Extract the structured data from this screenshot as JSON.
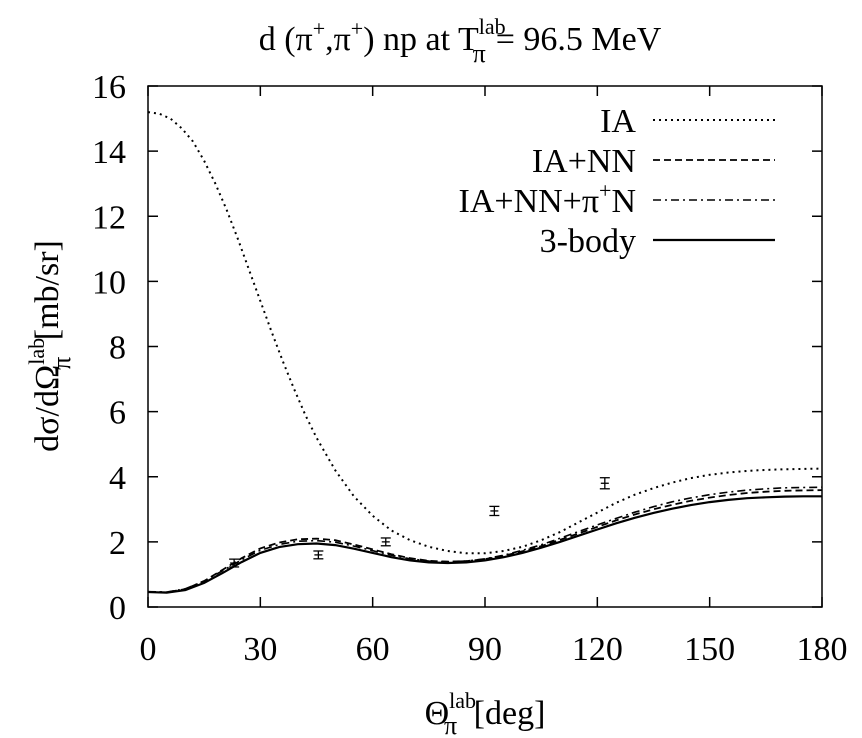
{
  "chart_data": {
    "type": "line",
    "title": {
      "prefix": "d (π",
      "sup1": "+",
      "mid": ",π",
      "sup2": "+",
      "suffix1": ") np at T",
      "sub": "π",
      "sup3": "lab",
      "suffix2": "= 96.5 MeV"
    },
    "xlabel": {
      "main": "Θ",
      "sub": "π",
      "sup": "lab",
      "unit": " [deg]"
    },
    "ylabel": {
      "main": "dσ/dΩ",
      "sub": "π",
      "sup": "lab",
      "unit": " [mb/sr]"
    },
    "xlim": [
      0,
      180
    ],
    "ylim": [
      0,
      16
    ],
    "xticks": [
      0,
      30,
      60,
      90,
      120,
      150,
      180
    ],
    "yticks": [
      0,
      2,
      4,
      6,
      8,
      10,
      12,
      14,
      16
    ],
    "grid": false,
    "legend_position": "top-right",
    "series": [
      {
        "name": "IA",
        "style": "dotted",
        "points": [
          [
            0,
            15.2
          ],
          [
            3,
            15.15
          ],
          [
            6,
            15.0
          ],
          [
            9,
            14.7
          ],
          [
            12,
            14.3
          ],
          [
            15,
            13.7
          ],
          [
            18,
            13.0
          ],
          [
            21,
            12.2
          ],
          [
            24,
            11.3
          ],
          [
            27,
            10.35
          ],
          [
            30,
            9.4
          ],
          [
            33,
            8.45
          ],
          [
            36,
            7.55
          ],
          [
            39,
            6.7
          ],
          [
            42,
            5.9
          ],
          [
            45,
            5.2
          ],
          [
            50,
            4.2
          ],
          [
            55,
            3.4
          ],
          [
            60,
            2.8
          ],
          [
            65,
            2.35
          ],
          [
            70,
            2.05
          ],
          [
            75,
            1.85
          ],
          [
            80,
            1.72
          ],
          [
            85,
            1.65
          ],
          [
            90,
            1.65
          ],
          [
            95,
            1.72
          ],
          [
            100,
            1.85
          ],
          [
            105,
            2.05
          ],
          [
            110,
            2.3
          ],
          [
            115,
            2.6
          ],
          [
            120,
            2.9
          ],
          [
            125,
            3.2
          ],
          [
            130,
            3.45
          ],
          [
            135,
            3.65
          ],
          [
            140,
            3.82
          ],
          [
            145,
            3.96
          ],
          [
            150,
            4.06
          ],
          [
            155,
            4.13
          ],
          [
            160,
            4.18
          ],
          [
            165,
            4.21
          ],
          [
            170,
            4.23
          ],
          [
            175,
            4.24
          ],
          [
            180,
            4.25
          ]
        ]
      },
      {
        "name": "IA+NN",
        "style": "dashed",
        "points": [
          [
            0,
            0.46
          ],
          [
            5,
            0.45
          ],
          [
            10,
            0.55
          ],
          [
            15,
            0.8
          ],
          [
            20,
            1.15
          ],
          [
            25,
            1.5
          ],
          [
            30,
            1.8
          ],
          [
            35,
            1.98
          ],
          [
            40,
            2.08
          ],
          [
            45,
            2.1
          ],
          [
            50,
            2.05
          ],
          [
            55,
            1.92
          ],
          [
            60,
            1.77
          ],
          [
            65,
            1.62
          ],
          [
            70,
            1.5
          ],
          [
            75,
            1.42
          ],
          [
            80,
            1.39
          ],
          [
            85,
            1.41
          ],
          [
            90,
            1.47
          ],
          [
            95,
            1.57
          ],
          [
            100,
            1.71
          ],
          [
            105,
            1.87
          ],
          [
            110,
            2.06
          ],
          [
            115,
            2.26
          ],
          [
            120,
            2.46
          ],
          [
            125,
            2.66
          ],
          [
            130,
            2.84
          ],
          [
            135,
            3.0
          ],
          [
            140,
            3.14
          ],
          [
            145,
            3.26
          ],
          [
            150,
            3.36
          ],
          [
            155,
            3.44
          ],
          [
            160,
            3.5
          ],
          [
            165,
            3.54
          ],
          [
            170,
            3.57
          ],
          [
            175,
            3.58
          ],
          [
            180,
            3.59
          ]
        ]
      },
      {
        "name": "IA+NN+π+N",
        "style": "dashdot",
        "points": [
          [
            0,
            0.47
          ],
          [
            5,
            0.46
          ],
          [
            10,
            0.56
          ],
          [
            15,
            0.8
          ],
          [
            20,
            1.12
          ],
          [
            25,
            1.45
          ],
          [
            30,
            1.74
          ],
          [
            35,
            1.92
          ],
          [
            40,
            2.02
          ],
          [
            45,
            2.04
          ],
          [
            50,
            1.99
          ],
          [
            55,
            1.87
          ],
          [
            60,
            1.73
          ],
          [
            65,
            1.59
          ],
          [
            70,
            1.48
          ],
          [
            75,
            1.41
          ],
          [
            80,
            1.39
          ],
          [
            85,
            1.41
          ],
          [
            90,
            1.48
          ],
          [
            95,
            1.59
          ],
          [
            100,
            1.74
          ],
          [
            105,
            1.91
          ],
          [
            110,
            2.11
          ],
          [
            115,
            2.32
          ],
          [
            120,
            2.52
          ],
          [
            125,
            2.72
          ],
          [
            130,
            2.91
          ],
          [
            135,
            3.08
          ],
          [
            140,
            3.23
          ],
          [
            145,
            3.35
          ],
          [
            150,
            3.45
          ],
          [
            155,
            3.53
          ],
          [
            160,
            3.59
          ],
          [
            165,
            3.63
          ],
          [
            170,
            3.66
          ],
          [
            175,
            3.67
          ],
          [
            180,
            3.68
          ]
        ]
      },
      {
        "name": "3-body",
        "style": "solid",
        "points": [
          [
            0,
            0.46
          ],
          [
            5,
            0.44
          ],
          [
            10,
            0.52
          ],
          [
            15,
            0.74
          ],
          [
            20,
            1.05
          ],
          [
            25,
            1.38
          ],
          [
            30,
            1.66
          ],
          [
            35,
            1.84
          ],
          [
            40,
            1.93
          ],
          [
            45,
            1.95
          ],
          [
            50,
            1.9
          ],
          [
            55,
            1.79
          ],
          [
            60,
            1.66
          ],
          [
            65,
            1.53
          ],
          [
            70,
            1.43
          ],
          [
            75,
            1.37
          ],
          [
            80,
            1.35
          ],
          [
            85,
            1.37
          ],
          [
            90,
            1.43
          ],
          [
            95,
            1.53
          ],
          [
            100,
            1.66
          ],
          [
            105,
            1.82
          ],
          [
            110,
            2.0
          ],
          [
            115,
            2.19
          ],
          [
            120,
            2.38
          ],
          [
            125,
            2.57
          ],
          [
            130,
            2.74
          ],
          [
            135,
            2.89
          ],
          [
            140,
            3.02
          ],
          [
            145,
            3.13
          ],
          [
            150,
            3.22
          ],
          [
            155,
            3.29
          ],
          [
            160,
            3.34
          ],
          [
            165,
            3.37
          ],
          [
            170,
            3.39
          ],
          [
            175,
            3.4
          ],
          [
            180,
            3.4
          ]
        ]
      }
    ],
    "data_points": [
      {
        "x": 23,
        "y": 1.35,
        "err": 0.12
      },
      {
        "x": 45.5,
        "y": 1.6,
        "err": 0.12
      },
      {
        "x": 63.5,
        "y": 2.0,
        "err": 0.12
      },
      {
        "x": 92.5,
        "y": 2.95,
        "err": 0.14
      },
      {
        "x": 122,
        "y": 3.8,
        "err": 0.17
      }
    ]
  }
}
